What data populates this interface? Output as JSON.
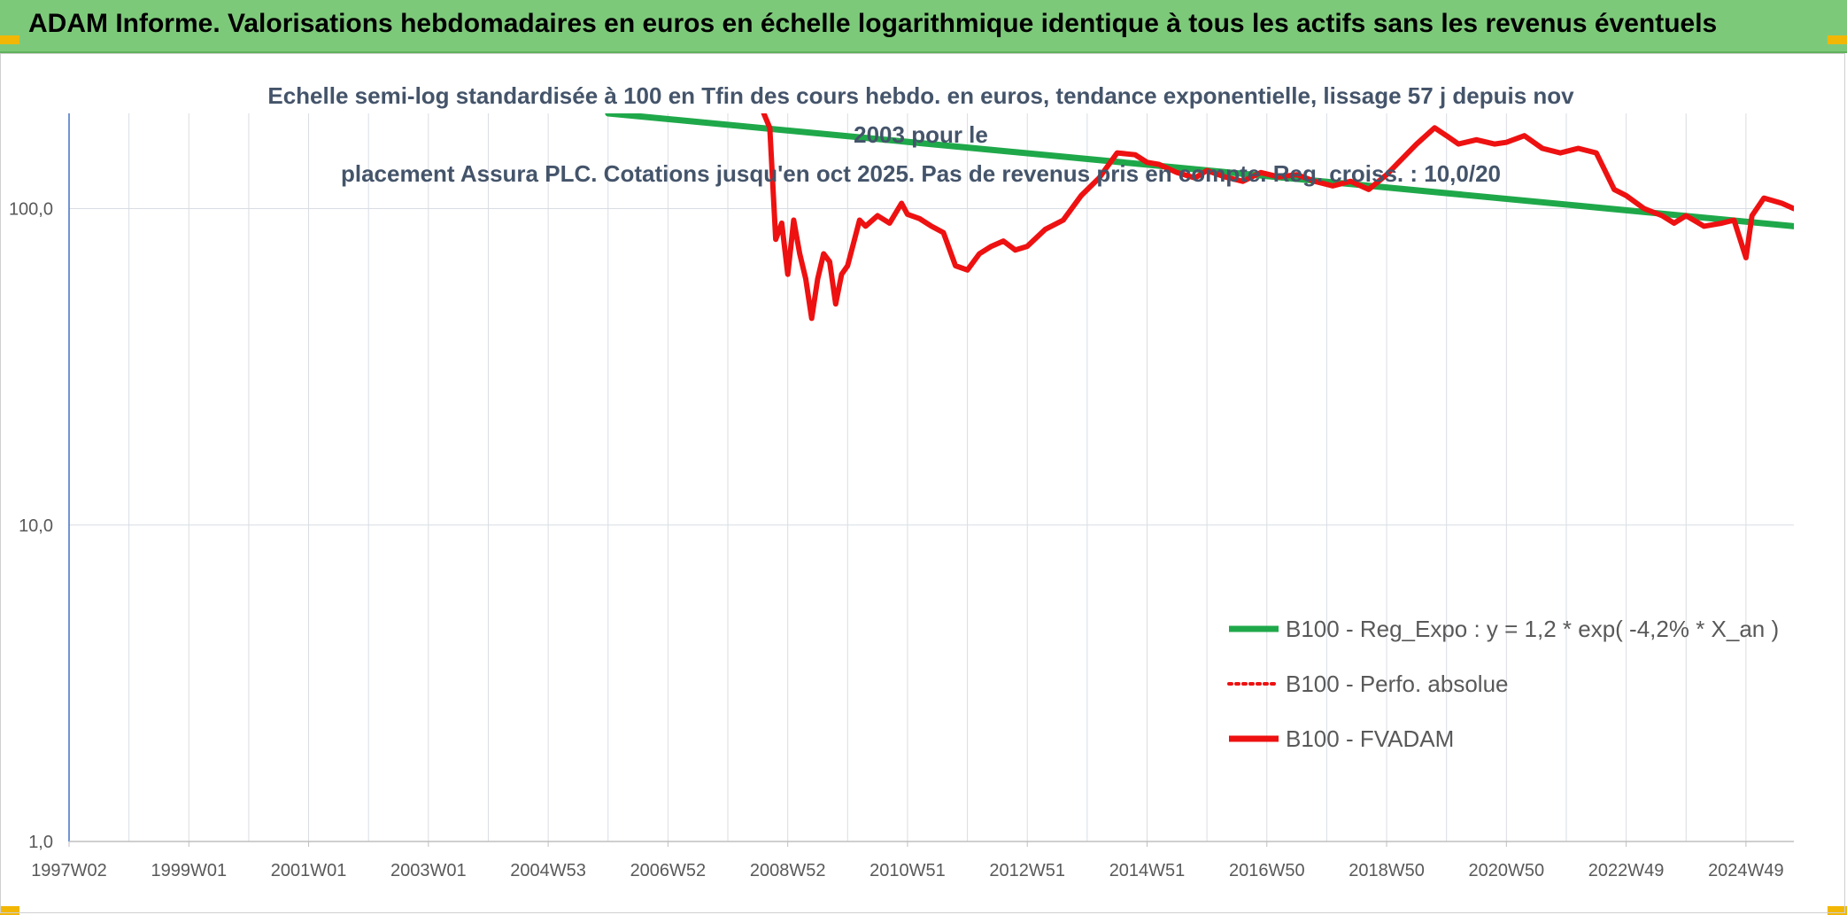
{
  "header": {
    "title": "ADAM Informe. Valorisations hebdomadaires en euros en échelle logarithmique identique à tous les actifs sans les revenus éventuels"
  },
  "chart_data": {
    "type": "line",
    "subtitle_line1": "Echelle semi-log standardisée à 100 en Tfin des cours hebdo. en euros, tendance exponentielle, lissage 57 j depuis nov 2003 pour le",
    "subtitle_line2": "placement Assura PLC. Cotations jusqu'en oct 2025. Pas de revenus pris en compte. Reg. croiss. : 10,0/20",
    "y_scale": "log",
    "ylim": [
      1,
      200
    ],
    "y_ticks": [
      "1,0",
      "10,0",
      "100,0"
    ],
    "x_start": 1997.0,
    "x_end": 2025.8,
    "x_ticks": [
      {
        "label": "1997W02",
        "year": 1997.0
      },
      {
        "label": "1999W01",
        "year": 1999.0
      },
      {
        "label": "2001W01",
        "year": 2001.0
      },
      {
        "label": "2003W01",
        "year": 2003.0
      },
      {
        "label": "2004W53",
        "year": 2005.0
      },
      {
        "label": "2006W52",
        "year": 2007.0
      },
      {
        "label": "2008W52",
        "year": 2009.0
      },
      {
        "label": "2010W51",
        "year": 2011.0
      },
      {
        "label": "2012W51",
        "year": 2013.0
      },
      {
        "label": "2014W51",
        "year": 2015.0
      },
      {
        "label": "2016W50",
        "year": 2017.0
      },
      {
        "label": "2018W50",
        "year": 2019.0
      },
      {
        "label": "2020W50",
        "year": 2021.0
      },
      {
        "label": "2022W49",
        "year": 2023.0
      },
      {
        "label": "2024W49",
        "year": 2025.0
      }
    ],
    "legend_position": "right",
    "colors": {
      "trend": "#1fa84a",
      "price": "#ee1111",
      "grid": "#d9dde3",
      "axis": "#4472c4",
      "tick_text": "#595959"
    },
    "series": [
      {
        "name": "B100 - Reg_Expo : y = 1,2 * exp( -4,2% *  X_an )",
        "style": "trend",
        "x": [
          2006.0,
          2025.8
        ],
        "y": [
          200,
          88
        ]
      },
      {
        "name": "B100 - Perfo. absolue",
        "style": "dotted",
        "x": [],
        "y": []
      },
      {
        "name": "B100 - FVADAM",
        "style": "price",
        "x": [
          2008.6,
          2008.7,
          2008.8,
          2008.9,
          2009.0,
          2009.05,
          2009.1,
          2009.2,
          2009.3,
          2009.4,
          2009.5,
          2009.6,
          2009.7,
          2009.8,
          2009.9,
          2010.0,
          2010.1,
          2010.2,
          2010.3,
          2010.5,
          2010.7,
          2010.9,
          2011.0,
          2011.2,
          2011.4,
          2011.6,
          2011.8,
          2012.0,
          2012.2,
          2012.4,
          2012.6,
          2012.8,
          2013.0,
          2013.3,
          2013.6,
          2013.9,
          2014.2,
          2014.5,
          2014.8,
          2015.0,
          2015.2,
          2015.5,
          2015.8,
          2016.0,
          2016.3,
          2016.6,
          2016.9,
          2017.2,
          2017.5,
          2017.8,
          2018.1,
          2018.4,
          2018.7,
          2019.0,
          2019.2,
          2019.5,
          2019.8,
          2020.0,
          2020.2,
          2020.5,
          2020.8,
          2021.0,
          2021.3,
          2021.6,
          2021.9,
          2022.2,
          2022.5,
          2022.8,
          2023.0,
          2023.3,
          2023.6,
          2023.8,
          2024.0,
          2024.3,
          2024.6,
          2024.8,
          2025.0,
          2025.1,
          2025.3,
          2025.6,
          2025.8
        ],
        "y": [
          200,
          180,
          80,
          90,
          62,
          75,
          92,
          72,
          60,
          45,
          60,
          72,
          68,
          50,
          62,
          66,
          78,
          92,
          88,
          95,
          90,
          104,
          96,
          93,
          88,
          84,
          66,
          64,
          72,
          76,
          79,
          74,
          76,
          86,
          92,
          110,
          125,
          150,
          148,
          140,
          138,
          130,
          125,
          132,
          126,
          122,
          130,
          126,
          128,
          122,
          118,
          122,
          115,
          128,
          140,
          160,
          180,
          170,
          160,
          165,
          160,
          162,
          170,
          155,
          150,
          155,
          150,
          115,
          110,
          100,
          95,
          90,
          95,
          88,
          90,
          92,
          70,
          95,
          108,
          104,
          100
        ]
      }
    ]
  }
}
